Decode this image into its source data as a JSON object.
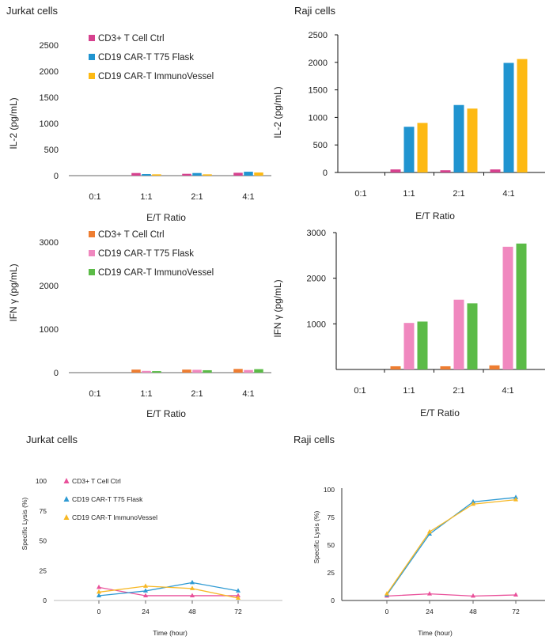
{
  "chart_data": [
    {
      "id": "il2-jurkat",
      "type": "bar",
      "title": "Jurkat cells",
      "xlabel": "E/T Ratio",
      "ylabel": "IL-2 (pg/mL)",
      "ylim": [
        0,
        2500
      ],
      "yticks": [
        0,
        500,
        1000,
        1500,
        2000,
        2500
      ],
      "categories": [
        "0:1",
        "1:1",
        "2:1",
        "4:1"
      ],
      "series": [
        {
          "name": "CD3+ T Cell Ctrl",
          "color": "#d6418e",
          "values": [
            0,
            50,
            35,
            55
          ]
        },
        {
          "name": "CD19 CAR-T T75 Flask",
          "color": "#2094d0",
          "values": [
            0,
            30,
            50,
            75
          ]
        },
        {
          "name": "CD19 CAR-T ImmunoVessel",
          "color": "#fdb913",
          "values": [
            0,
            25,
            25,
            60
          ]
        }
      ]
    },
    {
      "id": "il2-raji",
      "type": "bar",
      "title": "Raji cells",
      "xlabel": "E/T Ratio",
      "ylabel": "IL-2 (pg/mL)",
      "ylim": [
        0,
        2500
      ],
      "yticks": [
        0,
        500,
        1000,
        1500,
        2000,
        2500
      ],
      "categories": [
        "0:1",
        "1:1",
        "2:1",
        "4:1"
      ],
      "series": [
        {
          "name": "CD3+ T Cell Ctrl",
          "color": "#d6418e",
          "values": [
            0,
            55,
            40,
            55
          ]
        },
        {
          "name": "CD19 CAR-T T75 Flask",
          "color": "#2094d0",
          "values": [
            0,
            830,
            1225,
            1990
          ]
        },
        {
          "name": "CD19 CAR-T ImmunoVessel",
          "color": "#fdb913",
          "values": [
            0,
            900,
            1160,
            2060
          ]
        }
      ]
    },
    {
      "id": "ifn-jurkat",
      "type": "bar",
      "title": "",
      "xlabel": "E/T Ratio",
      "ylabel": "IFN γ  (pg/mL)",
      "ylim": [
        0,
        3000
      ],
      "yticks": [
        0,
        1000,
        2000,
        3000
      ],
      "categories": [
        "0:1",
        "1:1",
        "2:1",
        "4:1"
      ],
      "series": [
        {
          "name": "CD3+ T Cell Ctrl",
          "color": "#ee7d31",
          "values": [
            0,
            70,
            70,
            85
          ]
        },
        {
          "name": "CD19 CAR-T T75 Flask",
          "color": "#f088bf",
          "values": [
            0,
            40,
            65,
            60
          ]
        },
        {
          "name": "CD19 CAR-T ImmunoVessel",
          "color": "#5bbb47",
          "values": [
            0,
            35,
            55,
            80
          ]
        }
      ]
    },
    {
      "id": "ifn-raji",
      "type": "bar",
      "title": "",
      "xlabel": "E/T Ratio",
      "ylabel": "IFN γ  (pg/mL)",
      "ylim": [
        0,
        3000
      ],
      "yticks": [
        1000,
        2000,
        3000
      ],
      "categories": [
        "0:1",
        "1:1",
        "2:1",
        "4:1"
      ],
      "series": [
        {
          "name": "CD3+ T Cell Ctrl",
          "color": "#ee7d31",
          "values": [
            0,
            70,
            70,
            90
          ]
        },
        {
          "name": "CD19 CAR-T T75 Flask",
          "color": "#f088bf",
          "values": [
            0,
            1020,
            1530,
            2690
          ]
        },
        {
          "name": "CD19 CAR-T ImmunoVessel",
          "color": "#5bbb47",
          "values": [
            0,
            1050,
            1450,
            2760
          ]
        }
      ]
    },
    {
      "id": "lysis-jurkat",
      "type": "line",
      "title": "Jurkat cells",
      "xlabel": "Time (hour)",
      "ylabel": "Specific Lysis (%)",
      "ylim": [
        0,
        100
      ],
      "yticks": [
        0,
        25,
        50,
        75,
        100
      ],
      "x": [
        0,
        24,
        48,
        72
      ],
      "series": [
        {
          "name": "CD3+ T Cell Ctrl",
          "color": "#e9519a",
          "values": [
            11,
            4,
            4,
            4
          ]
        },
        {
          "name": "CD19 CAR-T T75 Flask",
          "color": "#2e9ad3",
          "values": [
            4,
            8,
            15,
            8
          ]
        },
        {
          "name": "CD19 CAR-T ImmunoVessel",
          "color": "#f7b825",
          "values": [
            7,
            12,
            10,
            2
          ]
        }
      ]
    },
    {
      "id": "lysis-raji",
      "type": "line",
      "title": "Raji cells",
      "xlabel": "Time (hour)",
      "ylabel": "Specific Lysis (%)",
      "ylim": [
        0,
        100
      ],
      "yticks": [
        0,
        25,
        50,
        75,
        100
      ],
      "x": [
        0,
        24,
        48,
        72
      ],
      "series": [
        {
          "name": "CD3+ T Cell Ctrl",
          "color": "#e9519a",
          "values": [
            4,
            6,
            4,
            5
          ]
        },
        {
          "name": "CD19 CAR-T T75 Flask",
          "color": "#2e9ad3",
          "values": [
            5,
            60,
            89,
            93
          ]
        },
        {
          "name": "CD19 CAR-T ImmunoVessel",
          "color": "#f7b825",
          "values": [
            6,
            62,
            87,
            91
          ]
        }
      ]
    }
  ]
}
